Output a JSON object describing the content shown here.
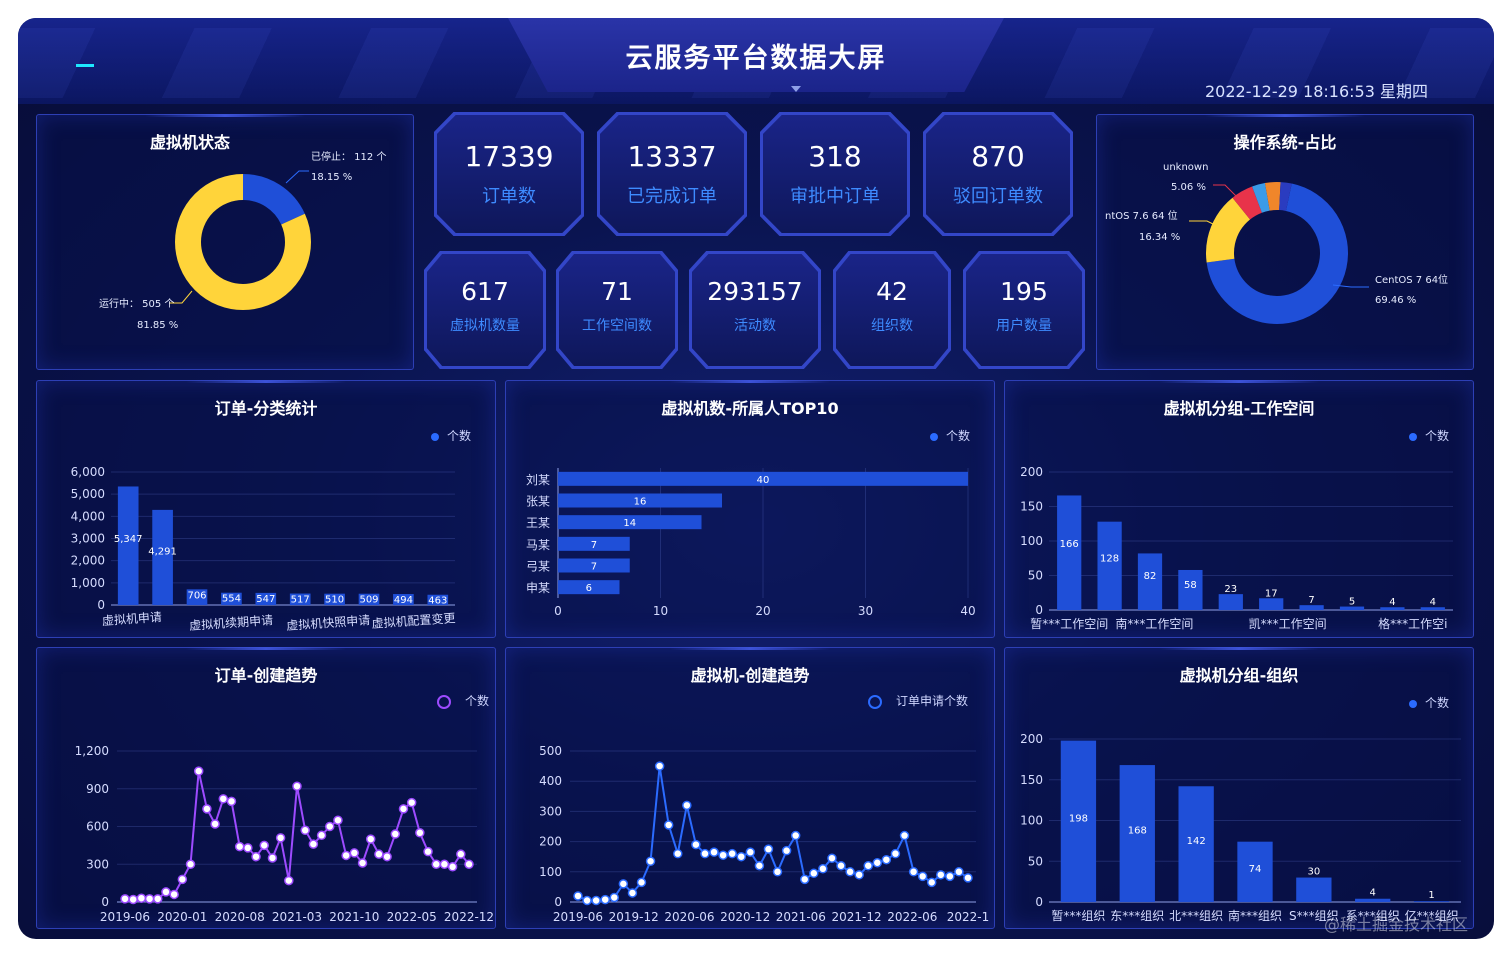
{
  "header": {
    "title": "云服务平台数据大屏",
    "datetime": "2022-12-29 18:16:53 星期四"
  },
  "stats": [
    {
      "value": "17339",
      "label": "订单数"
    },
    {
      "value": "13337",
      "label": "已完成订单"
    },
    {
      "value": "318",
      "label": "审批中订单"
    },
    {
      "value": "870",
      "label": "驳回订单数"
    },
    {
      "value": "617",
      "label": "虚拟机数量"
    },
    {
      "value": "71",
      "label": "工作空间数"
    },
    {
      "value": "293157",
      "label": "活动数"
    },
    {
      "value": "42",
      "label": "组织数"
    },
    {
      "value": "195",
      "label": "用户数量"
    }
  ],
  "panels": {
    "vm_status": {
      "title": "虚拟机状态"
    },
    "os_share": {
      "title": "操作系统-占比"
    },
    "order_cat": {
      "title": "订单-分类统计",
      "legend": "个数"
    },
    "vm_owner": {
      "title": "虚拟机数-所属人TOP10",
      "legend": "个数"
    },
    "vm_workspace": {
      "title": "虚拟机分组-工作空间",
      "legend": "个数"
    },
    "order_trend": {
      "title": "订单-创建趋势",
      "legend": "个数"
    },
    "vm_trend": {
      "title": "虚拟机-创建趋势",
      "legend": "订单申请个数"
    },
    "vm_org": {
      "title": "虚拟机分组-组织",
      "legend": "个数"
    }
  },
  "colors": {
    "blue": "#1f4fd8",
    "yellow": "#ffd43a",
    "purple": "#9d4bff",
    "lineblue": "#2b6bff"
  },
  "watermark": "@稀土掘金技术社区",
  "chart_data": [
    {
      "id": "vm_status",
      "type": "pie",
      "title": "虚拟机状态",
      "slices": [
        {
          "name": "运行中",
          "value": 505,
          "unit": "个",
          "percent": "81.85 %",
          "color": "#ffd43a"
        },
        {
          "name": "已停止",
          "value": 112,
          "unit": "个",
          "percent": "18.15 %",
          "color": "#1f4fd8"
        }
      ]
    },
    {
      "id": "os_share",
      "type": "pie",
      "title": "操作系统-占比",
      "slices": [
        {
          "name": "CentOS 7 64位",
          "percent": "69.46 %",
          "value": 69.46,
          "color": "#1f4fd8"
        },
        {
          "name": "ntOS 7.6 64 位",
          "percent": "16.34 %",
          "value": 16.34,
          "color": "#ffd43a"
        },
        {
          "name": "unknown",
          "percent": "5.06 %",
          "value": 5.06,
          "color": "#e8334a"
        },
        {
          "name": "",
          "value": 3.0,
          "color": "#3a9be8"
        },
        {
          "name": "",
          "value": 3.5,
          "color": "#f0862a"
        },
        {
          "name": "",
          "value": 2.64,
          "color": "#2a3cc0"
        }
      ]
    },
    {
      "id": "order_cat",
      "type": "bar",
      "title": "订单-分类统计",
      "categories": [
        "虚拟机申请",
        "",
        "虚拟机续期申请",
        "",
        "",
        "虚拟机快照申请",
        "",
        "",
        "虚拟机配置变更",
        ""
      ],
      "tick_labels": [
        "虚拟机申请",
        "虚拟机续期申请",
        "虚拟机快照申请",
        "虚拟机配置变更"
      ],
      "values": [
        5347,
        4291,
        706,
        554,
        547,
        517,
        510,
        509,
        494,
        463
      ],
      "ylim": [
        0,
        6000
      ],
      "yticks": [
        "0",
        "1,000",
        "2,000",
        "3,000",
        "4,000",
        "5,000",
        "6,000"
      ],
      "legend": "个数"
    },
    {
      "id": "vm_owner",
      "type": "bar",
      "orientation": "horizontal",
      "title": "虚拟机数-所属人TOP10",
      "categories": [
        "刘某",
        "张某",
        "王某",
        "马某",
        "弓某",
        "申某"
      ],
      "values": [
        40,
        16,
        14,
        7,
        7,
        6
      ],
      "xlim": [
        0,
        40
      ],
      "xticks": [
        "0",
        "10",
        "20",
        "30",
        "40"
      ],
      "legend": "个数"
    },
    {
      "id": "vm_workspace",
      "type": "bar",
      "title": "虚拟机分组-工作空间",
      "categories": [
        "暂***工作空间",
        "",
        "南***工作空间",
        "",
        "",
        "凯***工作空间",
        "",
        "",
        "格***工作空间",
        ""
      ],
      "tick_labels": [
        "暂***工作空间",
        "南***工作空间",
        "凯***工作空间",
        "格***工作空i"
      ],
      "values": [
        166,
        128,
        82,
        58,
        23,
        17,
        7,
        5,
        4,
        4
      ],
      "ylim": [
        0,
        200
      ],
      "yticks": [
        "0",
        "50",
        "100",
        "150",
        "200"
      ],
      "legend": "个数"
    },
    {
      "id": "order_trend",
      "type": "line",
      "title": "订单-创建趋势",
      "x_ticks": [
        "2019-06",
        "2020-01",
        "2020-08",
        "2021-03",
        "2021-10",
        "2022-05",
        "2022-12"
      ],
      "values": [
        25,
        20,
        30,
        25,
        25,
        80,
        60,
        180,
        300,
        1040,
        740,
        620,
        820,
        800,
        440,
        430,
        360,
        450,
        350,
        510,
        170,
        920,
        570,
        460,
        530,
        600,
        650,
        370,
        390,
        310,
        500,
        380,
        360,
        540,
        740,
        790,
        550,
        400,
        300,
        300,
        280,
        380,
        300
      ],
      "ylim": [
        0,
        1200
      ],
      "yticks": [
        "0",
        "300",
        "600",
        "900",
        "1,200"
      ],
      "legend": "个数",
      "color": "#9d4bff"
    },
    {
      "id": "vm_trend",
      "type": "line",
      "title": "虚拟机-创建趋势",
      "x_ticks": [
        "2019-06",
        "2019-12",
        "2020-06",
        "2020-12",
        "2021-06",
        "2021-12",
        "2022-06",
        "2022-1"
      ],
      "values": [
        20,
        5,
        5,
        8,
        15,
        60,
        30,
        65,
        135,
        450,
        255,
        160,
        320,
        190,
        160,
        165,
        155,
        160,
        150,
        165,
        120,
        175,
        100,
        170,
        220,
        75,
        95,
        110,
        145,
        120,
        100,
        90,
        120,
        130,
        140,
        160,
        220,
        100,
        85,
        65,
        90,
        85,
        100,
        80
      ],
      "ylim": [
        0,
        500
      ],
      "yticks": [
        "0",
        "100",
        "200",
        "300",
        "400",
        "500"
      ],
      "legend": "订单申请个数",
      "color": "#2b6bff"
    },
    {
      "id": "vm_org",
      "type": "bar",
      "title": "虚拟机分组-组织",
      "categories": [
        "暂***组织",
        "东***组织",
        "北***组织",
        "南***组织",
        "S***组织",
        "系***组织",
        "亿***组织"
      ],
      "values": [
        198,
        168,
        142,
        74,
        30,
        4,
        1
      ],
      "ylim": [
        0,
        200
      ],
      "yticks": [
        "0",
        "50",
        "100",
        "150",
        "200"
      ],
      "legend": "个数"
    }
  ]
}
